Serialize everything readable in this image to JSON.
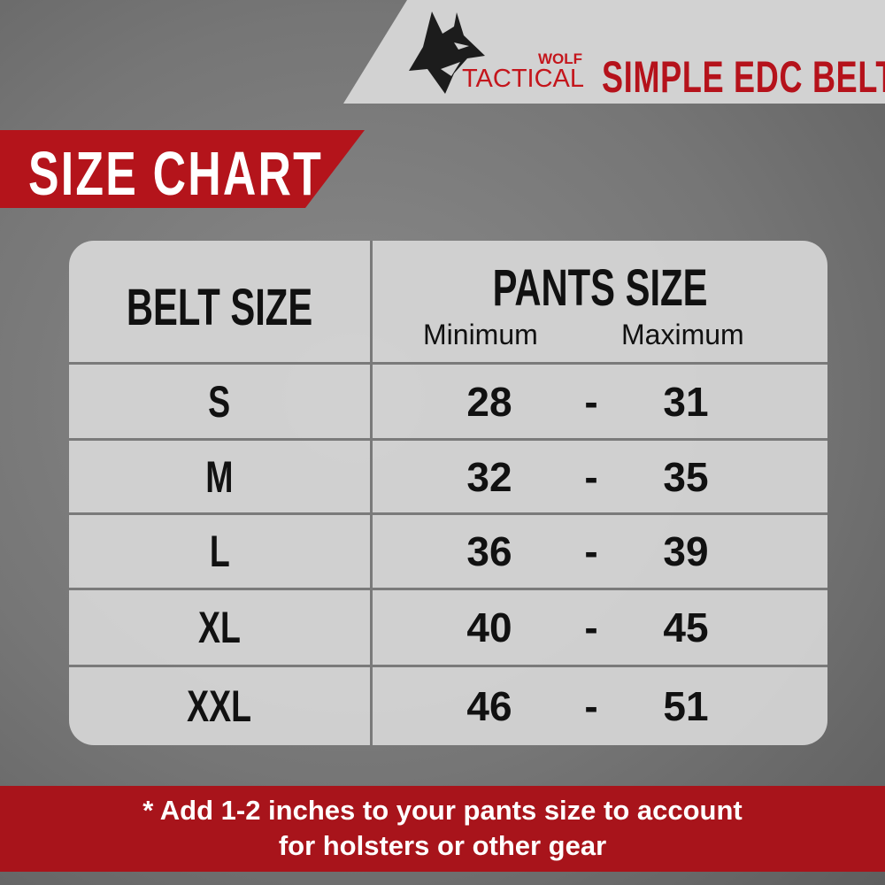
{
  "header": {
    "logo_small": "WOLF",
    "logo_large": "TACTICAL",
    "product_title": "SIMPLE EDC BELT",
    "logo_icon": "wolf-head-icon"
  },
  "banner": {
    "title": "SIZE CHART"
  },
  "table": {
    "belt_size_header": "BELT SIZE",
    "pants_size_header": "PANTS SIZE",
    "minimum_label": "Minimum",
    "maximum_label": "Maximum",
    "separator": "-",
    "rows": [
      {
        "size": "S",
        "min": "28",
        "max": "31"
      },
      {
        "size": "M",
        "min": "32",
        "max": "35"
      },
      {
        "size": "L",
        "min": "36",
        "max": "39"
      },
      {
        "size": "XL",
        "min": "40",
        "max": "45"
      },
      {
        "size": "XXL",
        "min": "46",
        "max": "51"
      }
    ]
  },
  "footer": {
    "line1": "* Add 1-2 inches to your pants size to account",
    "line2": "for holsters or other gear"
  },
  "colors": {
    "brand_red": "#b4141b",
    "panel": "#d2d2d2"
  }
}
